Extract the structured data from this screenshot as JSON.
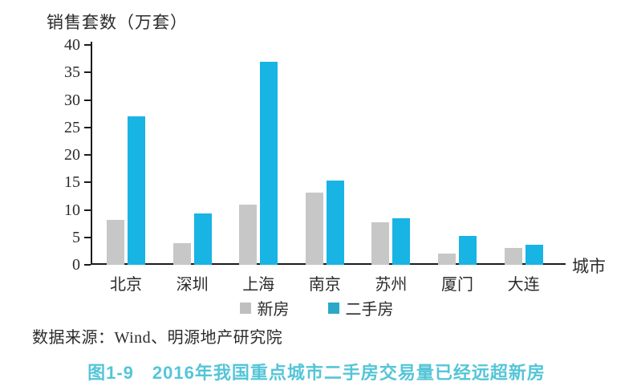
{
  "figure": {
    "y_axis_title": "销售套数（万套）",
    "x_axis_title": "城市",
    "source_text": "数据来源：Wind、明源地产研究院",
    "caption_text": "图1-9　2016年我国重点城市二手房交易量已经远超新房"
  },
  "colors": {
    "new_house_bar": "#c7c7c7",
    "second_hand_bar": "#18b4e3",
    "legend_new_house": "#bfbfbf",
    "legend_second_hand": "#2aa7c9",
    "axis": "#1c1c1c",
    "caption": "#54c5d7"
  },
  "legend": {
    "new_house_label": "新房",
    "second_hand_label": "二手房"
  },
  "chart_data": {
    "type": "bar",
    "title": "销售套数（万套）",
    "categories": [
      "北京",
      "深圳",
      "上海",
      "南京",
      "苏州",
      "厦门",
      "大连"
    ],
    "series": [
      {
        "name": "新房",
        "color": "#c7c7c7",
        "values": [
          8.2,
          4,
          11,
          13.2,
          7.7,
          2,
          3
        ]
      },
      {
        "name": "二手房",
        "color": "#18b4e3",
        "values": [
          27,
          9.4,
          37,
          15.4,
          8.5,
          5.2,
          3.6
        ]
      }
    ],
    "xlabel": "城市",
    "ylabel": "销售套数（万套）",
    "ylim": [
      0,
      40
    ],
    "ytick_step": 5,
    "ytick_labels": [
      "0",
      "5",
      "10",
      "15",
      "20",
      "25",
      "30",
      "35",
      "40"
    ],
    "grid": false,
    "legend_position": "bottom"
  }
}
